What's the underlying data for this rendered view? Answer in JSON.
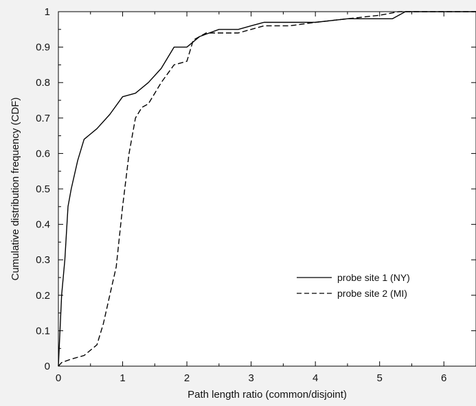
{
  "chart_data": {
    "type": "line",
    "xlabel": "Path length ratio (common/disjoint)",
    "ylabel": "Cumulative distribution frequency (CDF)",
    "xlim": [
      0,
      6.5
    ],
    "ylim": [
      0,
      1
    ],
    "x_ticks": [
      "0",
      "1",
      "2",
      "3",
      "4",
      "5",
      "6"
    ],
    "y_ticks": [
      "0",
      "0.1",
      "0.2",
      "0.3",
      "0.4",
      "0.5",
      "0.6",
      "0.7",
      "0.8",
      "0.9",
      "1"
    ],
    "grid": false,
    "legend_position": "lower-right",
    "series": [
      {
        "name": "probe site 1 (NY)",
        "line_style": "solid",
        "color": "#000000",
        "x": [
          0,
          0.05,
          0.1,
          0.15,
          0.2,
          0.3,
          0.4,
          0.6,
          0.8,
          1.0,
          1.2,
          1.4,
          1.6,
          1.8,
          2.0,
          2.2,
          2.5,
          2.8,
          3.0,
          3.2,
          3.6,
          4.0,
          4.5,
          5.0,
          5.2,
          5.4,
          6.0,
          6.5
        ],
        "y": [
          0,
          0.2,
          0.3,
          0.45,
          0.5,
          0.58,
          0.64,
          0.67,
          0.71,
          0.76,
          0.77,
          0.8,
          0.84,
          0.9,
          0.9,
          0.93,
          0.95,
          0.95,
          0.96,
          0.97,
          0.97,
          0.97,
          0.98,
          0.98,
          0.98,
          1.0,
          1.0,
          1.0
        ]
      },
      {
        "name": "probe site 2 (MI)",
        "line_style": "dashed",
        "color": "#000000",
        "x": [
          0,
          0.05,
          0.2,
          0.4,
          0.6,
          0.7,
          0.8,
          0.9,
          1.0,
          1.1,
          1.2,
          1.3,
          1.4,
          1.6,
          1.8,
          2.0,
          2.1,
          2.3,
          2.5,
          2.8,
          3.0,
          3.2,
          3.6,
          4.0,
          4.5,
          5.0,
          5.3,
          6.0,
          6.5
        ],
        "y": [
          0,
          0.01,
          0.02,
          0.03,
          0.06,
          0.12,
          0.2,
          0.28,
          0.45,
          0.6,
          0.7,
          0.73,
          0.74,
          0.8,
          0.85,
          0.86,
          0.92,
          0.94,
          0.94,
          0.94,
          0.95,
          0.96,
          0.96,
          0.97,
          0.98,
          0.99,
          1.0,
          1.0,
          1.0
        ]
      }
    ]
  }
}
